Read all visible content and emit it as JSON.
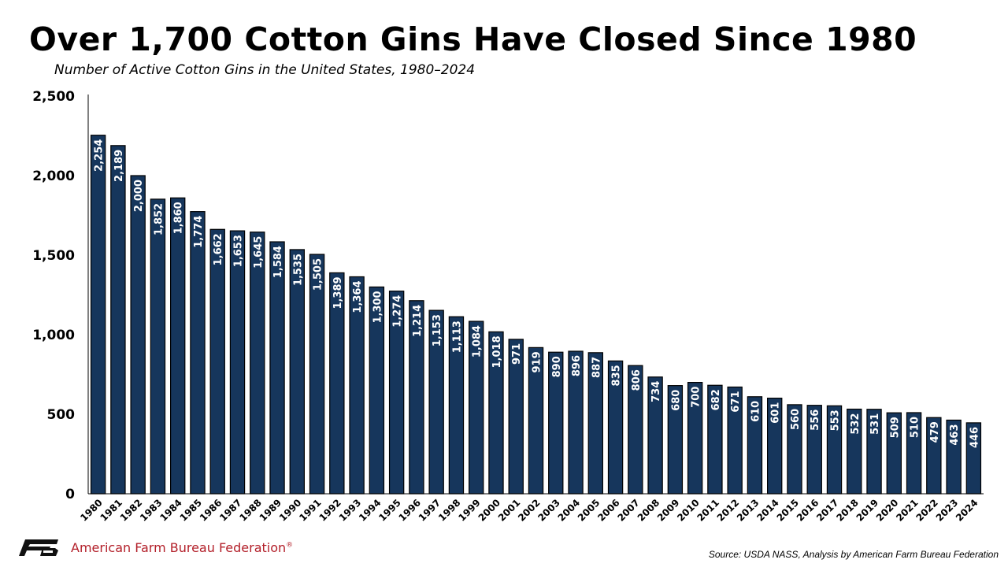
{
  "title": "Over 1,700 Cotton Gins Have Closed Since 1980",
  "subtitle": "Number of Active Cotton Gins in the United States, 1980–2024",
  "footer": {
    "organization": "American Farm Bureau Federation",
    "trademark": "®",
    "logo_icon": "fb-logo-icon",
    "source": "Source: USDA NASS, Analysis by American Farm Bureau Federation"
  },
  "colors": {
    "bar_fill": "#16365c",
    "bar_stroke": "#000000",
    "bar_label": "#ffffff",
    "brand_red": "#b3202a"
  },
  "chart_data": {
    "type": "bar",
    "title": "Over 1,700 Cotton Gins Have Closed Since 1980",
    "subtitle": "Number of Active Cotton Gins in the United States, 1980–2024",
    "xlabel": "",
    "ylabel": "",
    "ylim": [
      0,
      2500
    ],
    "yticks": [
      0,
      500,
      1000,
      1500,
      2000,
      2500
    ],
    "ytick_labels": [
      "0",
      "500",
      "1,000",
      "1,500",
      "2,000",
      "2,500"
    ],
    "grid": false,
    "legend": "none",
    "categories": [
      "1980",
      "1981",
      "1982",
      "1983",
      "1984",
      "1985",
      "1986",
      "1987",
      "1988",
      "1989",
      "1990",
      "1991",
      "1992",
      "1993",
      "1994",
      "1995",
      "1996",
      "1997",
      "1998",
      "1999",
      "2000",
      "2001",
      "2002",
      "2003",
      "2004",
      "2005",
      "2006",
      "2007",
      "2008",
      "2009",
      "2010",
      "2011",
      "2012",
      "2013",
      "2014",
      "2015",
      "2016",
      "2017",
      "2018",
      "2019",
      "2020",
      "2021",
      "2022",
      "2023",
      "2024"
    ],
    "values": [
      2254,
      2189,
      2000,
      1852,
      1860,
      1774,
      1662,
      1653,
      1645,
      1584,
      1535,
      1505,
      1389,
      1364,
      1300,
      1274,
      1214,
      1153,
      1113,
      1084,
      1018,
      971,
      919,
      890,
      896,
      887,
      835,
      806,
      734,
      680,
      700,
      682,
      671,
      610,
      601,
      560,
      556,
      553,
      532,
      531,
      509,
      510,
      479,
      463,
      446
    ],
    "value_labels": [
      "2,254",
      "2,189",
      "2,000",
      "1,852",
      "1,860",
      "1,774",
      "1,662",
      "1,653",
      "1,645",
      "1,584",
      "1,535",
      "1,505",
      "1,389",
      "1,364",
      "1,300",
      "1,274",
      "1,214",
      "1,153",
      "1,113",
      "1,084",
      "1,018",
      "971",
      "919",
      "890",
      "896",
      "887",
      "835",
      "806",
      "734",
      "680",
      "700",
      "682",
      "671",
      "610",
      "601",
      "560",
      "556",
      "553",
      "532",
      "531",
      "509",
      "510",
      "479",
      "463",
      "446"
    ]
  }
}
